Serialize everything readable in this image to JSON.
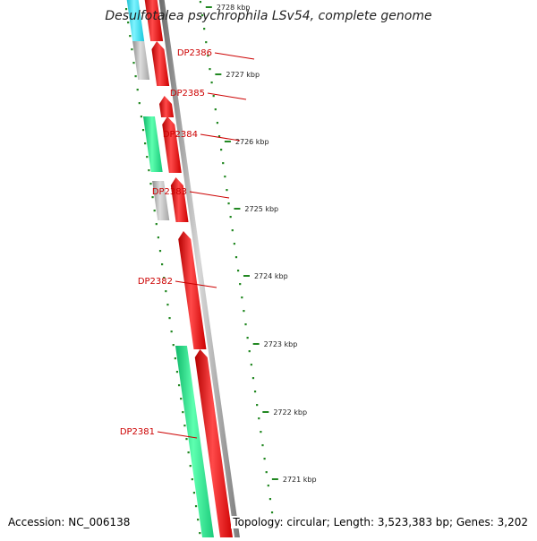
{
  "header": {
    "title": "Desulfotalea psychrophila LSv54, complete genome"
  },
  "footer": {
    "accession": "Accession: NC_006138",
    "topology": "Topology: circular; Length: 3,523,383 bp; Genes: 3,202"
  },
  "ruler": {
    "ticks": [
      "2721 kbp",
      "2722 kbp",
      "2723 kbp",
      "2724 kbp",
      "2725 kbp",
      "2726 kbp",
      "2727 kbp",
      "2728 kbp"
    ]
  },
  "genes": [
    "DP2381",
    "DP2382",
    "DP2383",
    "DP2384",
    "DP2385",
    "DP2386"
  ],
  "colors": {
    "cds": "#ee0000",
    "green_feature": "#22dd88",
    "gray_feature": "#b0b0b0",
    "cyan_feature": "#22ddee",
    "tick_green": "#228822",
    "backbone": "#888888",
    "label": "#cc0000"
  }
}
